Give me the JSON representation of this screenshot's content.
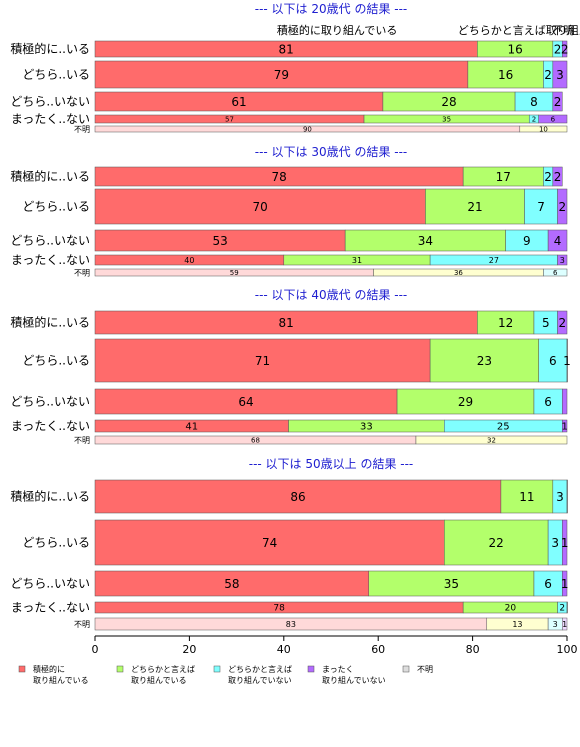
{
  "chart_data": {
    "type": "bar",
    "orientation": "horizontal",
    "stacked": true,
    "xlim": [
      0,
      100
    ],
    "x_ticks": [
      "0",
      "20",
      "40",
      "60",
      "80",
      "100"
    ],
    "categories": [
      "積極的に..いる",
      "どちら..いる",
      "どちら..いない",
      "まったく..ない",
      "不明"
    ],
    "column_labels": [
      "積極的に取り組んでいる",
      "どちらかと言えば取り組んでいる",
      "不明"
    ],
    "legend": [
      {
        "name": "積極的に\n取り組んでいる",
        "color": "#ff6b6b"
      },
      {
        "name": "どちらかと言えば\n取り組んでいる",
        "color": "#b3ff6b"
      },
      {
        "name": "どちらかと言えば\n取り組んでいない",
        "color": "#80ffff"
      },
      {
        "name": "まったく\n取り組んでいない",
        "color": "#b36bff"
      },
      {
        "name": "不明",
        "color": "#dddddd"
      }
    ],
    "colors": [
      "#ff6b6b",
      "#b3ff6b",
      "#80ffff",
      "#b36bff",
      "#dddddd"
    ],
    "light_colors": [
      "#ffd9d9",
      "#ffffd0",
      "#ddffff",
      "#eedaff",
      "#eeeeee"
    ],
    "panels": [
      {
        "title": "--- 以下は 20歳代 の結果 ---",
        "rows": [
          {
            "values": [
              81,
              16,
              2,
              2
            ],
            "labels": [
              "81",
              "16",
              "2",
              "2"
            ]
          },
          {
            "values": [
              79,
              16,
              2,
              3
            ],
            "labels": [
              "79",
              "16",
              "2",
              "3"
            ]
          },
          {
            "values": [
              61,
              28,
              8,
              2
            ],
            "labels": [
              "61",
              "28",
              "8",
              "2"
            ]
          },
          {
            "values": [
              57,
              35,
              2,
              6
            ],
            "labels": [
              "57",
              "35",
              "2",
              "6"
            ]
          },
          {
            "values": [
              90,
              10
            ],
            "labels": [
              "90",
              "10"
            ]
          }
        ]
      },
      {
        "title": "--- 以下は 30歳代 の結果 ---",
        "rows": [
          {
            "values": [
              78,
              17,
              2,
              2
            ],
            "labels": [
              "78",
              "17",
              "2",
              "2"
            ]
          },
          {
            "values": [
              70,
              21,
              7,
              2
            ],
            "labels": [
              "70",
              "21",
              "7",
              "2"
            ]
          },
          {
            "values": [
              53,
              34,
              9,
              4
            ],
            "labels": [
              "53",
              "34",
              "9",
              "4"
            ]
          },
          {
            "values": [
              40,
              31,
              27,
              3
            ],
            "labels": [
              "40",
              "31",
              "27",
              "3"
            ]
          },
          {
            "values": [
              59,
              36,
              6
            ],
            "labels": [
              "59",
              "36",
              "6"
            ]
          }
        ]
      },
      {
        "title": "--- 以下は 40歳代 の結果 ---",
        "rows": [
          {
            "values": [
              81,
              12,
              5,
              2
            ],
            "labels": [
              "81",
              "12",
              "5",
              "2"
            ]
          },
          {
            "values": [
              71,
              23,
              6,
              1
            ],
            "labels": [
              "71",
              "23",
              "6",
              "1"
            ]
          },
          {
            "values": [
              64,
              29,
              6,
              1
            ],
            "labels": [
              "64",
              "29",
              "6",
              ""
            ]
          },
          {
            "values": [
              41,
              33,
              25,
              1
            ],
            "labels": [
              "41",
              "33",
              "25",
              "1"
            ]
          },
          {
            "values": [
              68,
              32
            ],
            "labels": [
              "68",
              "32"
            ]
          }
        ]
      },
      {
        "title": "--- 以下は 50歳以上 の結果 ---",
        "rows": [
          {
            "values": [
              86,
              11,
              3,
              1
            ],
            "labels": [
              "86",
              "11",
              "3",
              ""
            ]
          },
          {
            "values": [
              74,
              22,
              3,
              1
            ],
            "labels": [
              "74",
              "22",
              "3",
              "1"
            ]
          },
          {
            "values": [
              58,
              35,
              6,
              1
            ],
            "labels": [
              "58",
              "35",
              "6",
              "1"
            ]
          },
          {
            "values": [
              78,
              20,
              2,
              1
            ],
            "labels": [
              "78",
              "20",
              "2",
              ""
            ]
          },
          {
            "values": [
              83,
              13,
              3,
              1
            ],
            "labels": [
              "83",
              "13",
              "3",
              "1"
            ]
          }
        ]
      }
    ]
  }
}
